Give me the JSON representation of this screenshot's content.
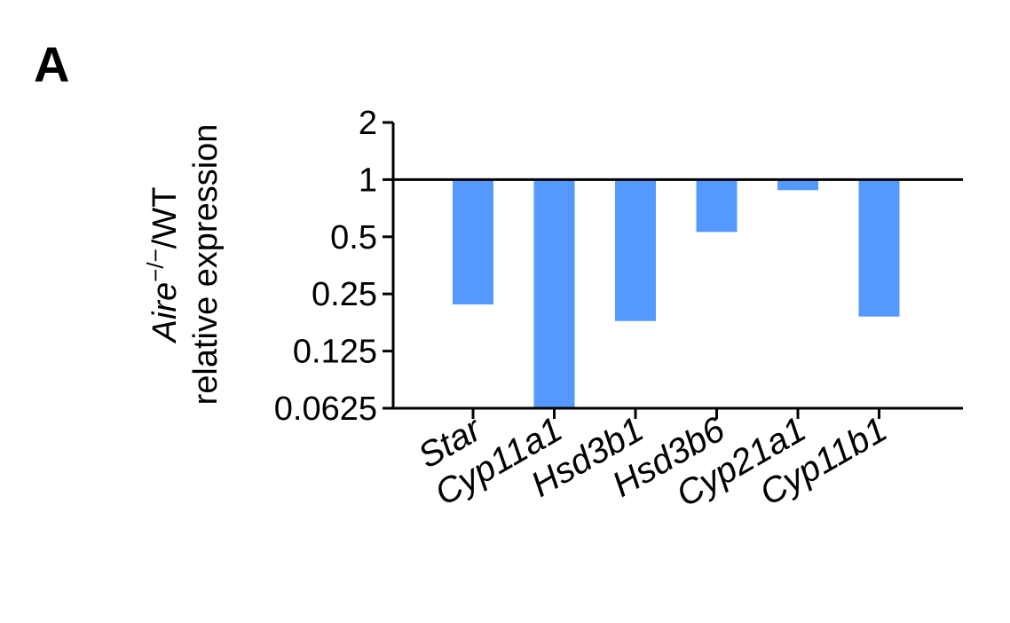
{
  "panel_label": "A",
  "chart_data": {
    "type": "bar",
    "scale": "log2",
    "baseline": 1,
    "categories": [
      "Star",
      "Cyp11a1",
      "Hsd3b1",
      "Hsd3b6",
      "Cyp21a1",
      "Cyp11b1"
    ],
    "values": [
      0.22,
      0.0625,
      0.18,
      0.53,
      0.88,
      0.19
    ],
    "ylim": [
      0.0625,
      2
    ],
    "yticks": [
      2,
      1,
      0.5,
      0.25,
      0.125,
      0.0625
    ],
    "ytick_labels": [
      "2",
      "1",
      "0.5",
      "0.25",
      "0.125",
      "0.0625"
    ],
    "ylabel": {
      "line1_gene": "Aire",
      "line1_superscript": "−/−",
      "line1_suffix": "/WT",
      "line2": "relative expression"
    },
    "bar_color": "#5599ff",
    "grid": false,
    "legend": "none"
  }
}
